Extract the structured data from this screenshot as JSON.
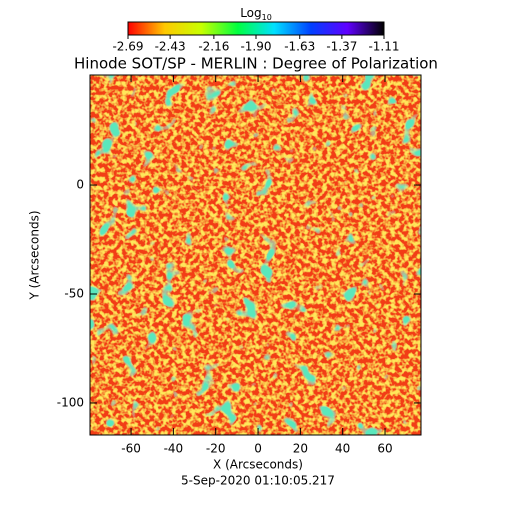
{
  "chart_data": {
    "type": "heatmap",
    "title": "Hinode SOT/SP - MERLIN : Degree of Polarization",
    "xlabel": "X (Arcseconds)",
    "ylabel": "Y (Arcseconds)",
    "footer": "5-Sep-2020 01:10:05.217",
    "colorbar_label": "Log",
    "colorbar_label_sub": "10",
    "clim": [
      -2.69,
      -1.11
    ],
    "cticks": [
      -2.69,
      -2.43,
      -2.16,
      {
        "value": -1.9,
        "label": "-1.90"
      },
      -1.63,
      -1.37,
      -1.11
    ],
    "colormap": [
      "#ff0000",
      "#ffc800",
      "#c8ff00",
      "#00ff40",
      "#00e0ff",
      "#0040ff",
      "#6000ff",
      "#000000"
    ],
    "xlim": [
      -79.4,
      77.0
    ],
    "xticks": [
      -60,
      -40,
      -20,
      0,
      20,
      40,
      60
    ],
    "ylim": [
      -114.7,
      50.5
    ],
    "yticks": [
      -100,
      -50,
      0
    ]
  }
}
